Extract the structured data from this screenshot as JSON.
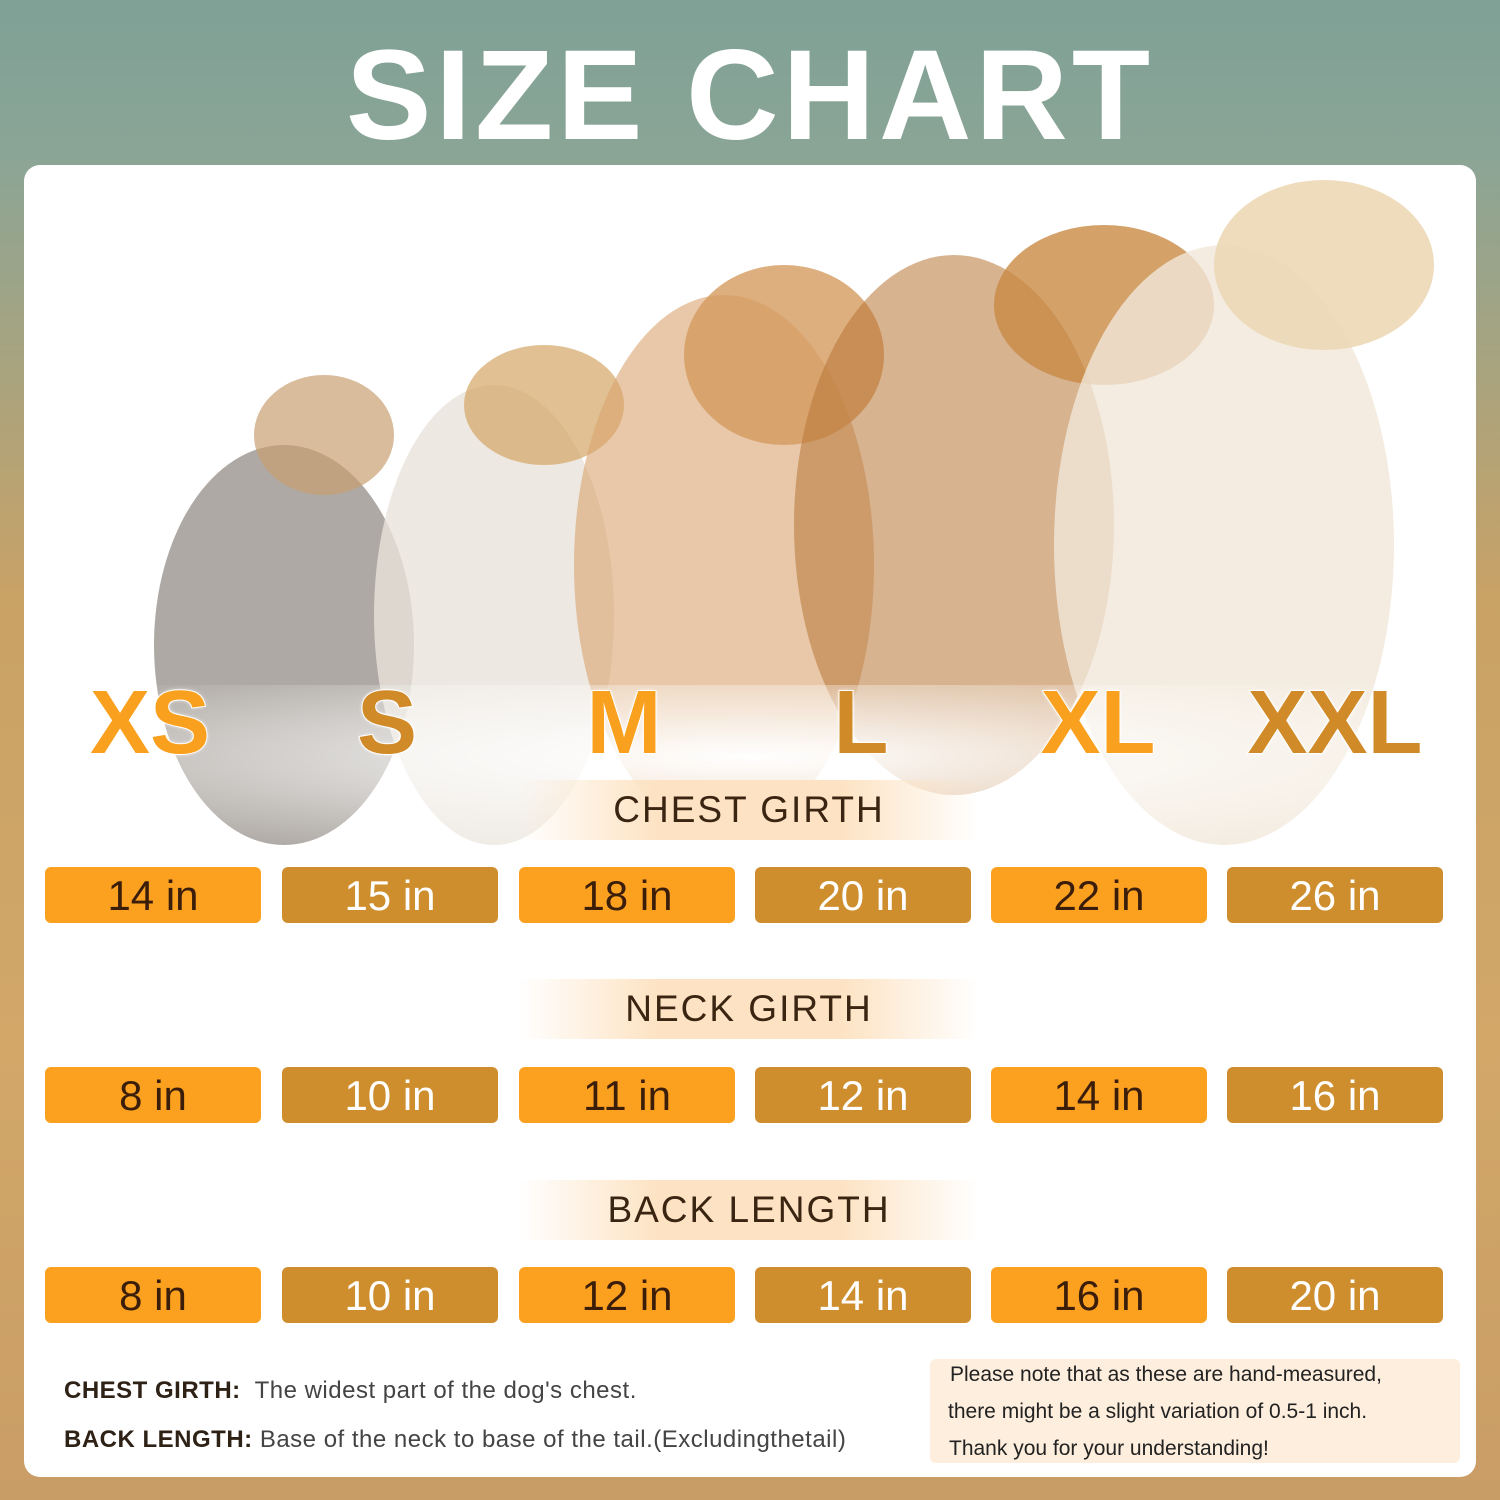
{
  "title": "SIZE CHART",
  "sizes": [
    "XS",
    "S",
    "M",
    "L",
    "XL",
    "XXL"
  ],
  "sections": [
    {
      "label": "CHEST GIRTH",
      "values": [
        "14 in",
        "15 in",
        "18 in",
        "20 in",
        "22 in",
        "26 in"
      ]
    },
    {
      "label": "NECK GIRTH",
      "values": [
        "8 in",
        "10 in",
        "11 in",
        "12 in",
        "14 in",
        "16 in"
      ]
    },
    {
      "label": "BACK LENGTH",
      "values": [
        "8 in",
        "10 in",
        "12 in",
        "14 in",
        "16 in",
        "20 in"
      ]
    }
  ],
  "definitions": [
    {
      "term": "CHEST GIRTH:",
      "text": "The widest part of the dog's chest."
    },
    {
      "term": "BACK LENGTH:",
      "text": "Base of the neck to base of the tail.(Excludingthetail)"
    }
  ],
  "note": [
    "Please note that as these are hand-measured,",
    "there might be a slight variation of 0.5-1 inch.",
    "Thank you for your understanding!"
  ],
  "colors": {
    "orange": "#fca020",
    "brown": "#cf8e2e",
    "card": "#ffffff"
  }
}
